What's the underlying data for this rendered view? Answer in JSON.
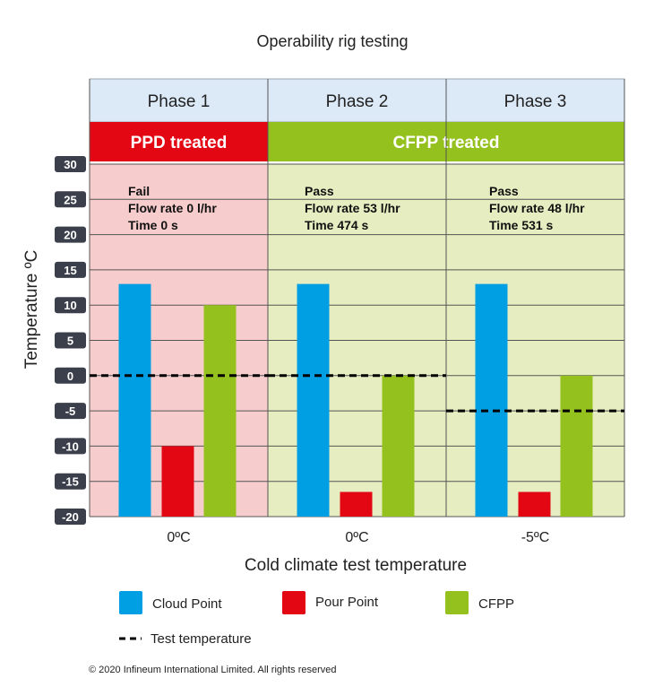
{
  "chart_data": {
    "type": "bar",
    "title": "Operability rig testing",
    "xlabel": "Cold climate test temperature",
    "ylabel": "Temperature ºC",
    "ylim": [
      -20,
      30
    ],
    "yticks": [
      30,
      25,
      20,
      15,
      10,
      5,
      0,
      -5,
      -10,
      -15,
      -20
    ],
    "grid": true,
    "categories": [
      "0ºC",
      "0ºC",
      "-5ºC"
    ],
    "phases": [
      "Phase 1",
      "Phase 2",
      "Phase 3"
    ],
    "treatments": [
      {
        "label": "PPD treated",
        "color": "#e30613",
        "bg": "#f7cccc",
        "phases": [
          0
        ]
      },
      {
        "label": "CFPP treated",
        "color": "#95c11f",
        "bg": "#e6edc0",
        "phases": [
          1,
          2
        ]
      }
    ],
    "annotations": [
      [
        "Fail",
        "Flow rate 0 l/hr",
        "Time 0 s"
      ],
      [
        "Pass",
        "Flow rate 53 l/hr",
        "Time 474 s"
      ],
      [
        "Pass",
        "Flow rate 48 l/hr",
        "Time 531 s"
      ]
    ],
    "series": [
      {
        "name": "Cloud Point",
        "color": "#009fe3",
        "values": [
          13,
          13,
          13
        ]
      },
      {
        "name": "Pour Point",
        "color": "#e30613",
        "values": [
          -10,
          -16.5,
          -16.5
        ]
      },
      {
        "name": "CFPP",
        "color": "#95c11f",
        "values": [
          10,
          0,
          0
        ]
      }
    ],
    "test_temperature": {
      "name": "Test temperature",
      "values": [
        0,
        0,
        -5
      ]
    },
    "legend_position": "bottom",
    "copyright": "© 2020  Infineum International Limited. All rights reserved"
  },
  "colors": {
    "phase_header": "#dce9f7",
    "grid": "#555555",
    "tick_badge": "#3a3f4b"
  }
}
